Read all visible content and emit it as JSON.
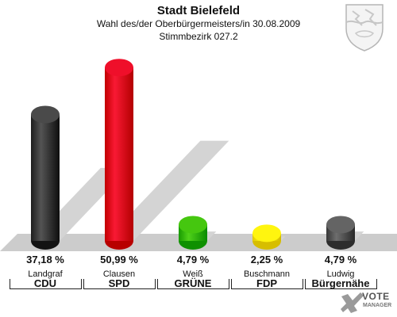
{
  "title": "Stadt Bielefeld",
  "subtitle_line1": "Wahl des/der Oberbürgermeisters/in 30.08.2009",
  "subtitle_line2": "Stimmbezirk 027.2",
  "logo": {
    "word1": "VOTE",
    "word2": "MANAGER",
    "icon": "x-check-icon"
  },
  "crest_icon": "coat-of-arms-icon",
  "colors": {
    "floor": "#cccccc",
    "shadow": "#d4d4d4",
    "CDU": "#3b3b3b",
    "SPD": "#e0001b",
    "GRUENE": "#36b800",
    "FDP": "#ffe600",
    "Buergernaehe": "#555555"
  },
  "chart_data": {
    "type": "bar",
    "title": "Stadt Bielefeld",
    "categories": [
      "Landgraf",
      "Clausen",
      "Weiß",
      "Buschmann",
      "Ludwig"
    ],
    "parties": [
      "CDU",
      "SPD",
      "GRÜNE",
      "FDP",
      "Bürgernähe"
    ],
    "values": [
      37.18,
      50.99,
      4.79,
      2.25,
      4.79
    ],
    "labels": [
      "37,18 %",
      "50,99 %",
      "4,79 %",
      "2,25 %",
      "4,79 %"
    ],
    "colors": [
      "#3b3b3b",
      "#e0001b",
      "#36b800",
      "#ffe600",
      "#555555"
    ],
    "ylim": [
      0,
      55
    ],
    "grid": false,
    "legend": "none"
  }
}
